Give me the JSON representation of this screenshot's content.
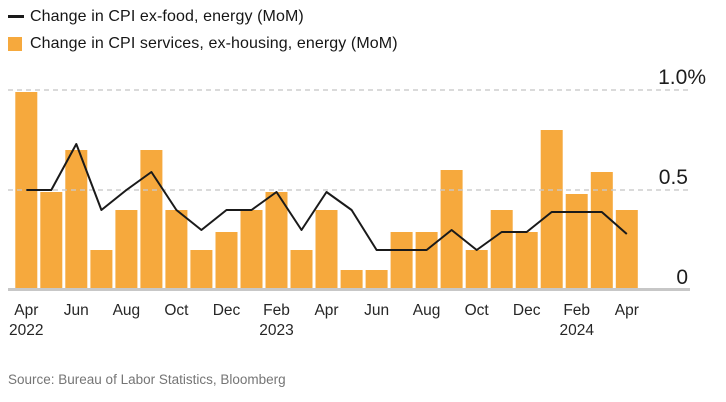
{
  "legend": [
    {
      "label": "Change in CPI ex-food, energy (MoM)",
      "symbol": "line",
      "color": "#1a1a1a"
    },
    {
      "label": "Change in CPI services, ex-housing, energy (MoM)",
      "symbol": "square",
      "color": "#f6a93d"
    }
  ],
  "source": "Source: Bureau of Labor Statistics, Bloomberg",
  "chart_data": {
    "type": "bar",
    "title": "",
    "xlabel": "",
    "ylabel": "",
    "ylim": [
      0,
      1.0
    ],
    "grid": {
      "style": "dashed-horizontal",
      "color": "#c9c9c9",
      "on": true
    },
    "legend_position": "top-left",
    "axis_side": "right",
    "categories": [
      "Apr 2022",
      "May 2022",
      "Jun 2022",
      "Jul 2022",
      "Aug 2022",
      "Sep 2022",
      "Oct 2022",
      "Nov 2022",
      "Dec 2022",
      "Jan 2023",
      "Feb 2023",
      "Mar 2023",
      "Apr 2023",
      "May 2023",
      "Jun 2023",
      "Jul 2023",
      "Aug 2023",
      "Sep 2023",
      "Oct 2023",
      "Nov 2023",
      "Dec 2023",
      "Jan 2024",
      "Feb 2024",
      "Mar 2024",
      "Apr 2024"
    ],
    "series": [
      {
        "name": "Change in CPI ex-food, energy (MoM)",
        "type": "line",
        "color": "#1a1a1a",
        "values": [
          0.5,
          0.5,
          0.73,
          0.4,
          0.5,
          0.59,
          0.4,
          0.3,
          0.4,
          0.4,
          0.49,
          0.3,
          0.49,
          0.4,
          0.2,
          0.2,
          0.2,
          0.3,
          0.2,
          0.29,
          0.29,
          0.39,
          0.39,
          0.39,
          0.28
        ]
      },
      {
        "name": "Change in CPI services, ex-housing, energy (MoM)",
        "type": "bar",
        "color": "#f6a93d",
        "values": [
          0.99,
          0.49,
          0.7,
          0.2,
          0.4,
          0.7,
          0.4,
          0.2,
          0.29,
          0.4,
          0.49,
          0.2,
          0.4,
          0.1,
          0.1,
          0.29,
          0.29,
          0.6,
          0.2,
          0.4,
          0.29,
          0.8,
          0.48,
          0.59,
          0.4
        ]
      }
    ],
    "yticks": [
      {
        "v": 0.0,
        "label": "0"
      },
      {
        "v": 0.5,
        "label": "0.5"
      },
      {
        "v": 1.0,
        "label": "1.0%"
      }
    ],
    "xticks": [
      {
        "i": 0,
        "month": "Apr",
        "year": "2022"
      },
      {
        "i": 2,
        "month": "Jun"
      },
      {
        "i": 4,
        "month": "Aug"
      },
      {
        "i": 6,
        "month": "Oct"
      },
      {
        "i": 8,
        "month": "Dec"
      },
      {
        "i": 10,
        "month": "Feb",
        "year": "2023"
      },
      {
        "i": 12,
        "month": "Apr"
      },
      {
        "i": 14,
        "month": "Jun"
      },
      {
        "i": 16,
        "month": "Aug"
      },
      {
        "i": 18,
        "month": "Oct"
      },
      {
        "i": 20,
        "month": "Dec"
      },
      {
        "i": 22,
        "month": "Feb",
        "year": "2024"
      },
      {
        "i": 24,
        "month": "Apr"
      }
    ]
  }
}
